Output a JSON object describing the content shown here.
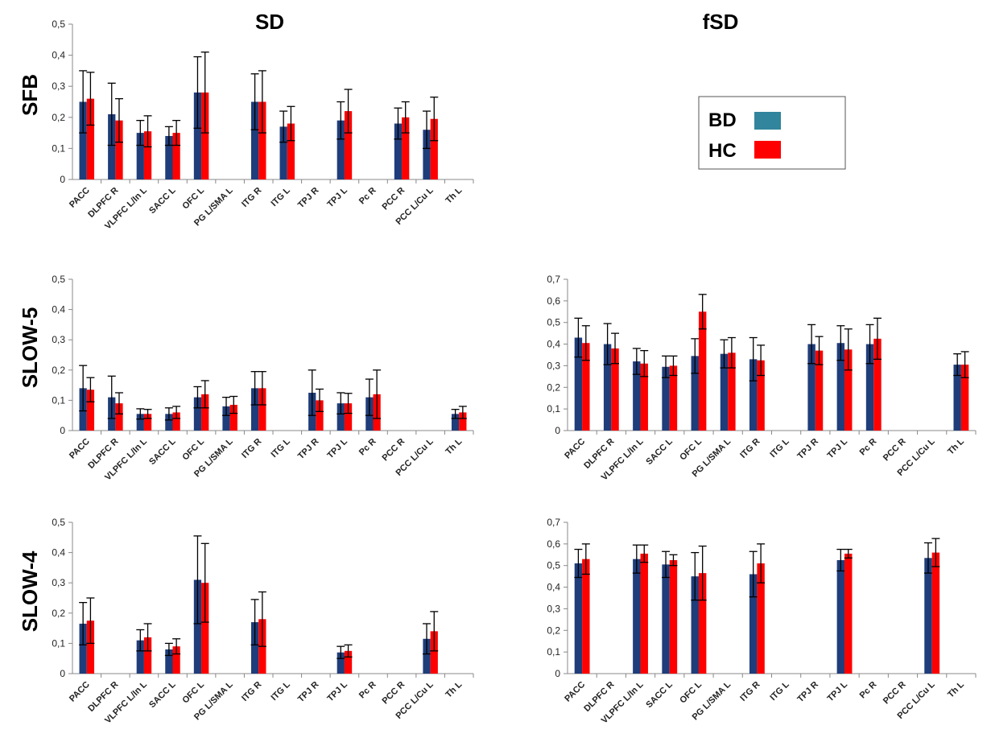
{
  "figure": {
    "column_titles": [
      "SD",
      "fSD"
    ],
    "row_titles": [
      "SFB",
      "SLOW-5",
      "SLOW-4"
    ],
    "legend": [
      {
        "label": "BD",
        "color": "#31859c"
      },
      {
        "label": "HC",
        "color": "#ff0000"
      }
    ],
    "colors": {
      "BD_bar": "#1f3d7a",
      "HC_bar": "#ff0000",
      "error_bar": "#000000",
      "axis": "#888888"
    }
  },
  "chart_data": [
    {
      "id": "sfb-sd",
      "type": "bar",
      "column": "SD",
      "row": "SFB",
      "categories": [
        "PACC",
        "DLPFC R",
        "VLPFC L/In L",
        "SACC L",
        "OFC L",
        "PG L/SMA L",
        "ITG R",
        "ITG L",
        "TPJ R",
        "TPJ L",
        "Pc R",
        "PCC R",
        "PCC L/Cu L",
        "Th L"
      ],
      "ylim": [
        0,
        0.5
      ],
      "yticks": [
        "0",
        "0,1",
        "0,2",
        "0,3",
        "0,4",
        "0,5"
      ],
      "series": [
        {
          "group": "BD",
          "values": [
            0.25,
            0.21,
            0.15,
            0.14,
            0.28,
            null,
            0.25,
            0.17,
            null,
            0.19,
            null,
            0.18,
            0.16,
            null
          ],
          "errors": [
            0.1,
            0.1,
            0.04,
            0.03,
            0.115,
            null,
            0.09,
            0.05,
            null,
            0.06,
            null,
            0.05,
            0.06,
            null
          ]
        },
        {
          "group": "HC",
          "values": [
            0.26,
            0.19,
            0.155,
            0.15,
            0.28,
            null,
            0.25,
            0.18,
            null,
            0.22,
            null,
            0.2,
            0.195,
            null
          ],
          "errors": [
            0.085,
            0.07,
            0.05,
            0.04,
            0.13,
            null,
            0.1,
            0.055,
            null,
            0.07,
            null,
            0.05,
            0.07,
            null
          ]
        }
      ]
    },
    {
      "id": "slow5-sd",
      "type": "bar",
      "column": "SD",
      "row": "SLOW-5",
      "categories": [
        "PACC",
        "DLPFC R",
        "VLPFC L/In L",
        "SACC L",
        "OFC L",
        "PG L/SMA L",
        "ITG R",
        "ITG L",
        "TPJ R",
        "TPJ L",
        "Pc R",
        "PCC R",
        "PCC L/Cu L",
        "Th L"
      ],
      "ylim": [
        0,
        0.5
      ],
      "yticks": [
        "0",
        "0,1",
        "0,2",
        "0,3",
        "0,4",
        "0,5"
      ],
      "series": [
        {
          "group": "BD",
          "values": [
            0.14,
            0.11,
            0.055,
            0.055,
            0.11,
            0.08,
            0.14,
            null,
            0.125,
            0.09,
            0.11,
            null,
            null,
            0.055
          ],
          "errors": [
            0.075,
            0.07,
            0.017,
            0.02,
            0.035,
            0.03,
            0.055,
            null,
            0.075,
            0.035,
            0.06,
            null,
            null,
            0.015
          ]
        },
        {
          "group": "HC",
          "values": [
            0.135,
            0.09,
            0.055,
            0.06,
            0.12,
            0.085,
            0.14,
            null,
            0.1,
            0.09,
            0.12,
            null,
            null,
            0.06
          ],
          "errors": [
            0.04,
            0.035,
            0.015,
            0.02,
            0.045,
            0.028,
            0.055,
            null,
            0.037,
            0.033,
            0.08,
            null,
            null,
            0.02
          ]
        }
      ]
    },
    {
      "id": "slow5-fsd",
      "type": "bar",
      "column": "fSD",
      "row": "SLOW-5",
      "categories": [
        "PACC",
        "DLPFC R",
        "VLPFC L/In L",
        "SACC L",
        "OFC L",
        "PG L/SMA L",
        "ITG R",
        "ITG L",
        "TPJ R",
        "TPJ L",
        "Pc R",
        "PCC R",
        "PCC L/Cu L",
        "Th L"
      ],
      "ylim": [
        0,
        0.7
      ],
      "yticks": [
        "0",
        "0,1",
        "0,2",
        "0,3",
        "0,4",
        "0,5",
        "0,6",
        "0,7"
      ],
      "series": [
        {
          "group": "BD",
          "values": [
            0.43,
            0.4,
            0.32,
            0.295,
            0.345,
            0.355,
            0.33,
            null,
            0.4,
            0.405,
            0.4,
            null,
            null,
            0.305
          ],
          "errors": [
            0.09,
            0.095,
            0.06,
            0.05,
            0.08,
            0.065,
            0.1,
            null,
            0.09,
            0.08,
            0.09,
            null,
            null,
            0.05
          ]
        },
        {
          "group": "HC",
          "values": [
            0.405,
            0.38,
            0.31,
            0.3,
            0.55,
            0.36,
            0.325,
            null,
            0.37,
            0.375,
            0.425,
            null,
            null,
            0.305
          ],
          "errors": [
            0.08,
            0.07,
            0.06,
            0.045,
            0.08,
            0.07,
            0.07,
            null,
            0.065,
            0.095,
            0.095,
            null,
            null,
            0.06
          ]
        }
      ]
    },
    {
      "id": "slow4-sd",
      "type": "bar",
      "column": "SD",
      "row": "SLOW-4",
      "categories": [
        "PACC",
        "DLPFC R",
        "VLPFC L/In L",
        "SACC L",
        "OFC L",
        "PG L/SMA L",
        "ITG R",
        "ITG L",
        "TPJ R",
        "TPJ L",
        "Pc R",
        "PCC R",
        "PCC L/Cu L",
        "Th L"
      ],
      "ylim": [
        0,
        0.5
      ],
      "yticks": [
        "0",
        "0,1",
        "0,2",
        "0,3",
        "0,4",
        "0,5"
      ],
      "series": [
        {
          "group": "BD",
          "values": [
            0.165,
            null,
            0.11,
            0.08,
            0.31,
            null,
            0.17,
            null,
            null,
            0.07,
            null,
            null,
            0.115,
            null
          ],
          "errors": [
            0.07,
            null,
            0.035,
            0.02,
            0.145,
            null,
            0.075,
            null,
            null,
            0.02,
            null,
            null,
            0.05,
            null
          ]
        },
        {
          "group": "HC",
          "values": [
            0.175,
            null,
            0.12,
            0.09,
            0.3,
            null,
            0.18,
            null,
            null,
            0.075,
            null,
            null,
            0.14,
            null
          ],
          "errors": [
            0.075,
            null,
            0.045,
            0.025,
            0.13,
            null,
            0.09,
            null,
            null,
            0.02,
            null,
            null,
            0.065,
            null
          ]
        }
      ]
    },
    {
      "id": "slow4-fsd",
      "type": "bar",
      "column": "fSD",
      "row": "SLOW-4",
      "categories": [
        "PACC",
        "DLPFC R",
        "VLPFC L/In L",
        "SACC L",
        "OFC L",
        "PG L/SMA L",
        "ITG R",
        "ITG L",
        "TPJ R",
        "TPJ L",
        "Pc R",
        "PCC R",
        "PCC L/Cu L",
        "Th L"
      ],
      "ylim": [
        0,
        0.7
      ],
      "yticks": [
        "0",
        "0,1",
        "0,2",
        "0,3",
        "0,4",
        "0,5",
        "0,6",
        "0,7"
      ],
      "series": [
        {
          "group": "BD",
          "values": [
            0.51,
            null,
            0.53,
            0.505,
            0.45,
            null,
            0.46,
            null,
            null,
            0.525,
            null,
            null,
            0.535,
            null
          ],
          "errors": [
            0.065,
            null,
            0.065,
            0.06,
            0.11,
            null,
            0.105,
            null,
            null,
            0.05,
            null,
            null,
            0.07,
            null
          ]
        },
        {
          "group": "HC",
          "values": [
            0.53,
            null,
            0.555,
            0.525,
            0.465,
            null,
            0.51,
            null,
            null,
            0.555,
            null,
            null,
            0.56,
            null
          ],
          "errors": [
            0.07,
            null,
            0.04,
            0.025,
            0.125,
            null,
            0.09,
            null,
            null,
            0.02,
            null,
            null,
            0.065,
            null
          ]
        }
      ]
    }
  ]
}
